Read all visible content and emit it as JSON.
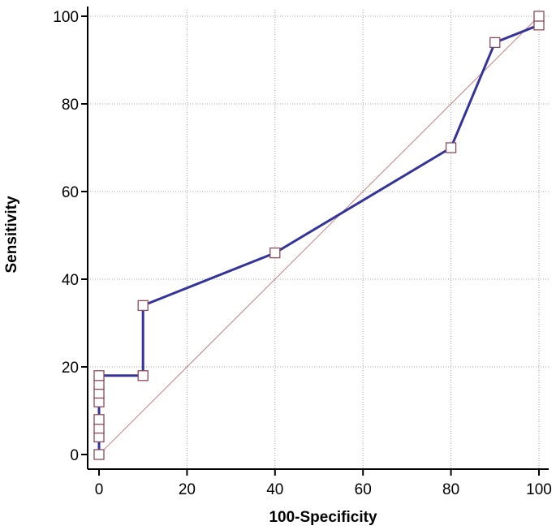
{
  "chart_data": {
    "type": "line",
    "xlabel": "100-Specificity",
    "ylabel": "Sensitivity",
    "xlim": [
      0,
      100
    ],
    "ylim": [
      0,
      100
    ],
    "x_ticks": [
      "0",
      "20",
      "40",
      "60",
      "80",
      "100"
    ],
    "y_ticks": [
      "0",
      "20",
      "40",
      "60",
      "80",
      "100"
    ],
    "grid": true,
    "series": [
      {
        "color": "#33339a",
        "marker": "square",
        "marker_edge_color": "#8c4a5a",
        "points": [
          [
            0,
            0
          ],
          [
            0,
            4
          ],
          [
            0,
            6
          ],
          [
            0,
            8
          ],
          [
            0,
            12
          ],
          [
            0,
            14
          ],
          [
            0,
            16
          ],
          [
            0,
            18
          ],
          [
            10,
            18
          ],
          [
            10,
            34
          ],
          [
            40,
            46
          ],
          [
            80,
            70
          ],
          [
            90,
            94
          ],
          [
            100,
            98
          ],
          [
            100,
            100
          ]
        ]
      }
    ],
    "reference_line": {
      "color": "#c08080",
      "points": [
        [
          0,
          0
        ],
        [
          100,
          100
        ]
      ]
    }
  }
}
